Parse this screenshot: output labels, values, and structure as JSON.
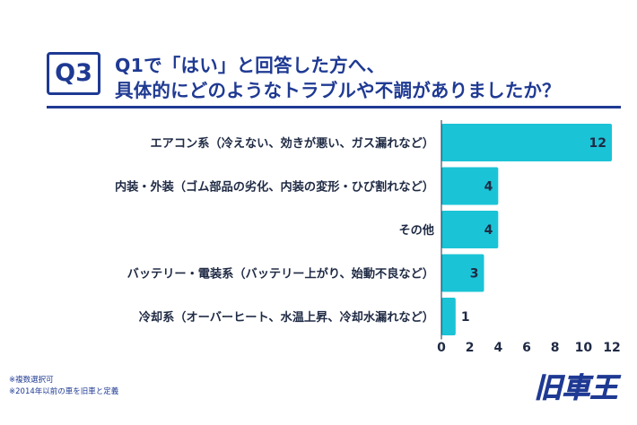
{
  "question": {
    "badge": "Q3",
    "line1": "Q1で「はい」と回答した方へ、",
    "line2": "具体的にどのようなトラブルや不調がありましたか？"
  },
  "chart_data": {
    "type": "bar",
    "orientation": "horizontal",
    "categories": [
      "エアコン系（冷えない、効きが悪い、ガス漏れなど）",
      "内装・外装（ゴム部品の劣化、内装の変形・ひび割れなど）",
      "その他",
      "バッテリー・電装系（バッテリー上がり、始動不良など）",
      "冷却系（オーバーヒート、水温上昇、冷却水漏れなど）"
    ],
    "values": [
      12,
      4,
      4,
      3,
      1
    ],
    "xlim": [
      0,
      12
    ],
    "xticks": [
      "0",
      "2",
      "4",
      "6",
      "8",
      "10",
      "12"
    ],
    "bar_color": "#1bc3d6",
    "label_color": "#1f2a44"
  },
  "notes": [
    "※複数選択可",
    "※2014年以前の車を旧車と定義"
  ],
  "logo": {
    "text": "旧車王",
    "color": "#1f3a93"
  },
  "colors": {
    "accent": "#1f3a93",
    "bar": "#1bc3d6"
  }
}
